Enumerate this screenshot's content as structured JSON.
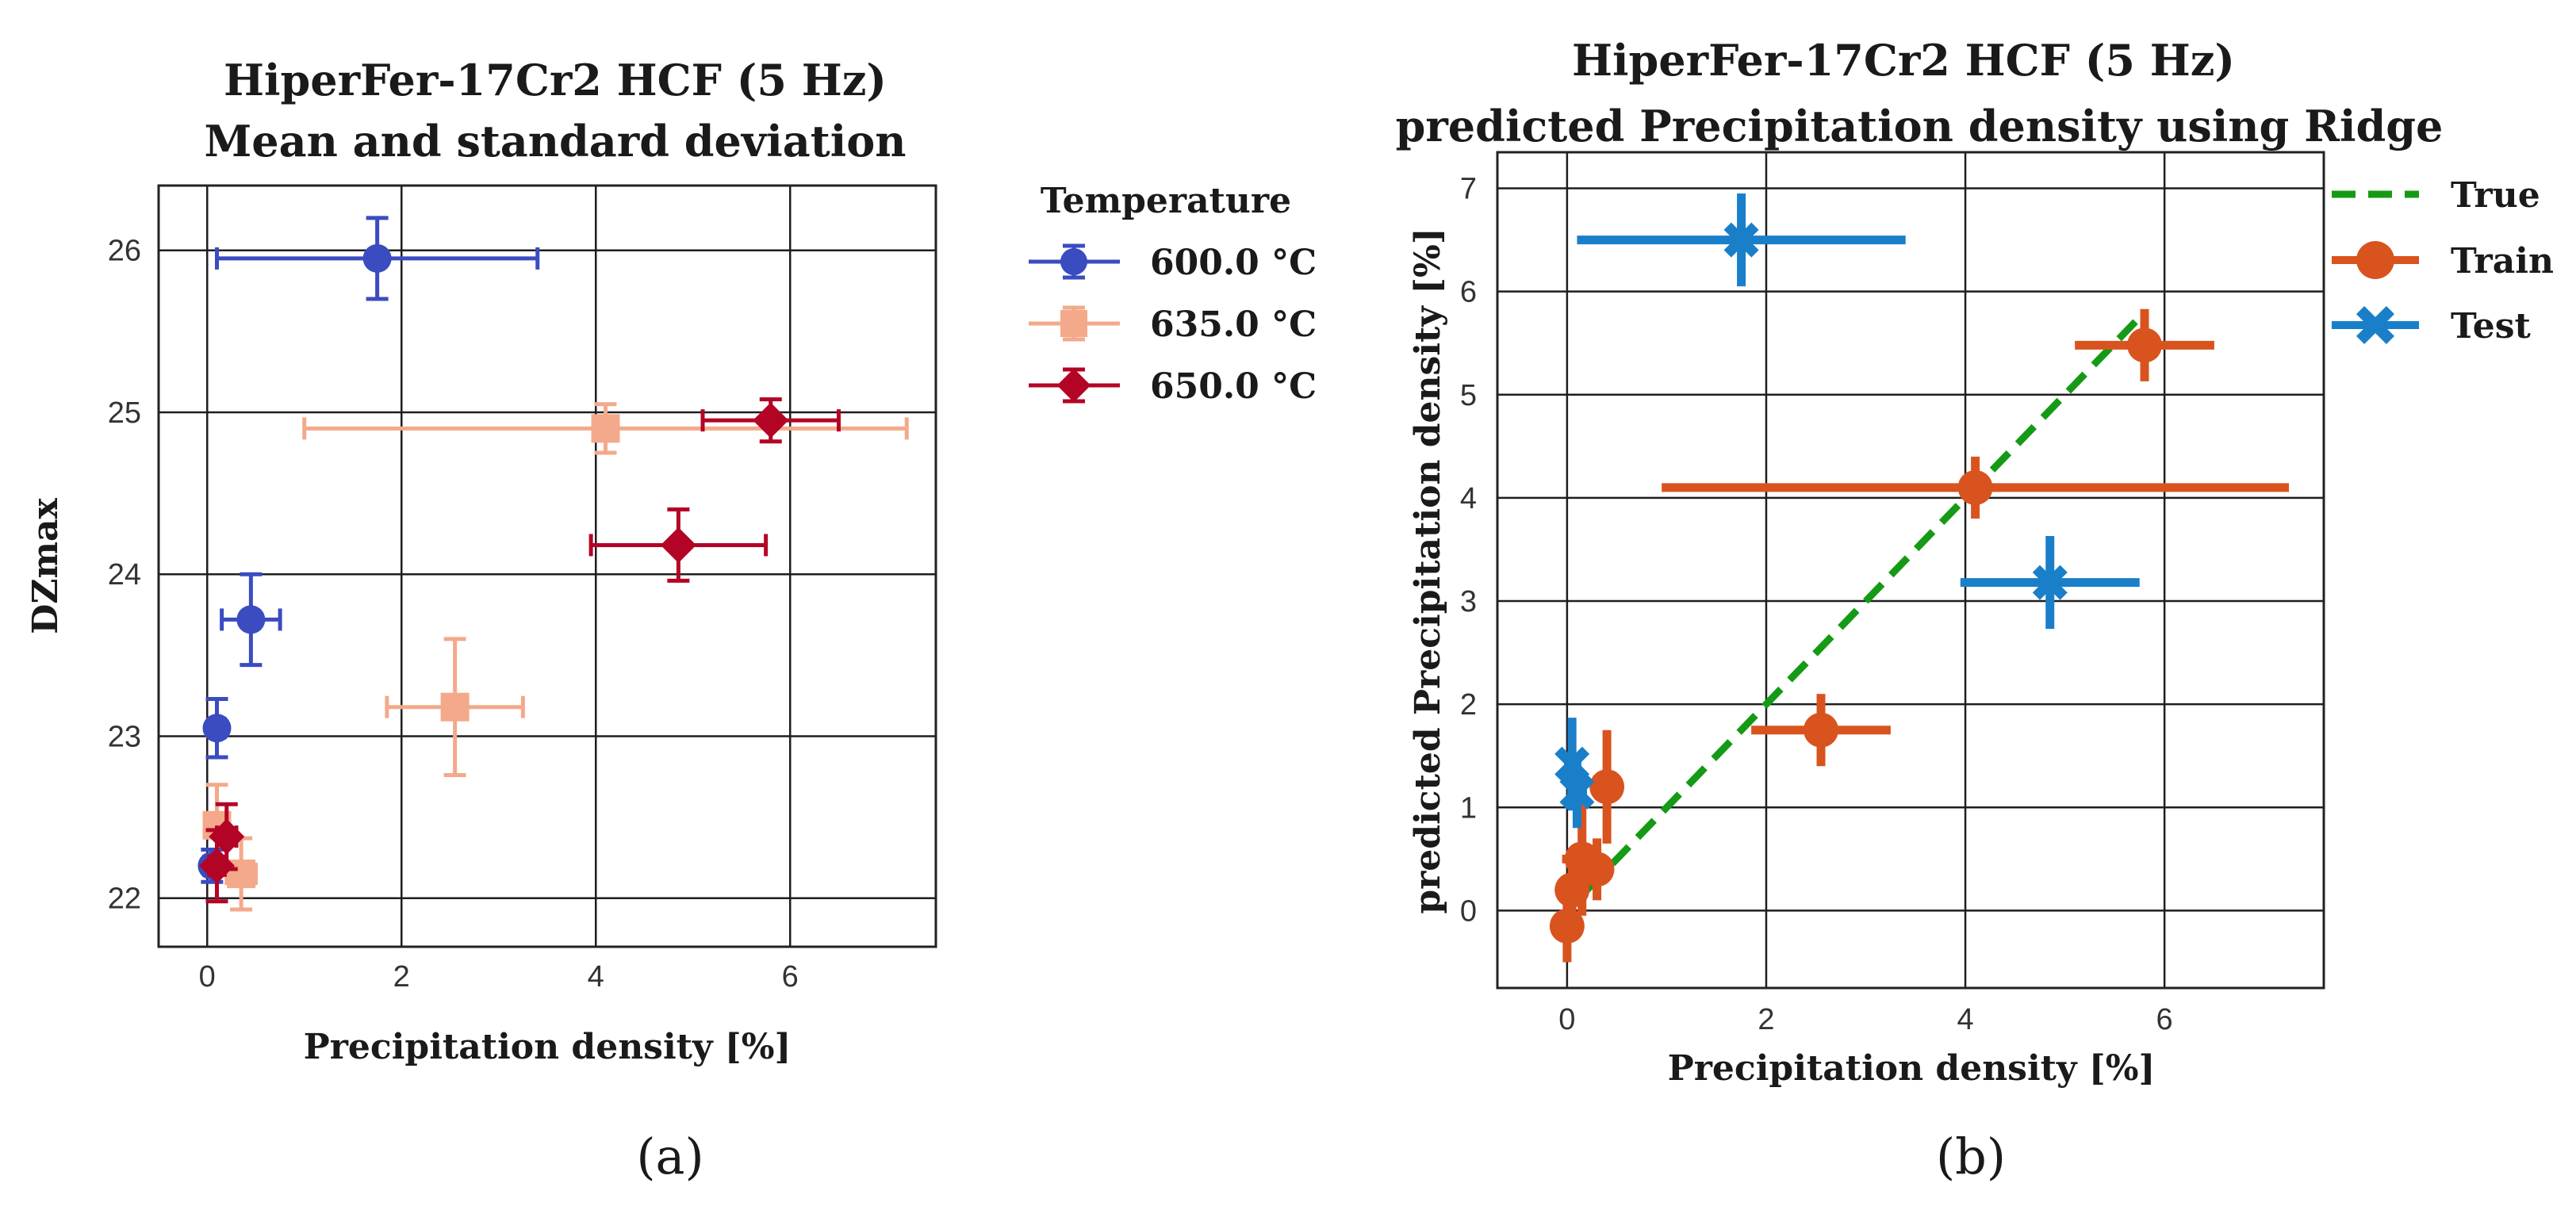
{
  "chart_data": [
    {
      "panel": "(a)",
      "type": "scatter",
      "title": [
        "HiperFer-17Cr2 HCF (5 Hz)",
        "Mean and standard deviation"
      ],
      "xlabel": "Precipitation density [%]",
      "ylabel": "DZmax",
      "xlim": [
        -0.5,
        7.5
      ],
      "ylim": [
        21.7,
        26.4
      ],
      "xticks": [
        0,
        2,
        4,
        6
      ],
      "yticks": [
        22,
        23,
        24,
        25,
        26
      ],
      "grid": true,
      "legend": {
        "title": "Temperature",
        "placement": "outside-right"
      },
      "series": [
        {
          "name": "600.0 °C",
          "color": "#3a4cc0",
          "marker": "circle",
          "points": [
            {
              "x": 1.75,
              "y": 25.95,
              "xerr": 1.65,
              "yerr": 0.25
            },
            {
              "x": 0.45,
              "y": 23.72,
              "xerr": 0.3,
              "yerr": 0.28
            },
            {
              "x": 0.1,
              "y": 23.05,
              "xerr": 0.08,
              "yerr": 0.18
            },
            {
              "x": 0.05,
              "y": 22.2,
              "xerr": 0.08,
              "yerr": 0.1
            }
          ]
        },
        {
          "name": "635.0 °C",
          "color": "#f4a98a",
          "marker": "square",
          "points": [
            {
              "x": 4.1,
              "y": 24.9,
              "xerr": 3.1,
              "yerr": 0.15
            },
            {
              "x": 2.55,
              "y": 23.18,
              "xerr": 0.7,
              "yerr": 0.42
            },
            {
              "x": 0.1,
              "y": 22.45,
              "xerr": 0.1,
              "yerr": 0.25
            },
            {
              "x": 0.35,
              "y": 22.15,
              "xerr": 0.15,
              "yerr": 0.22
            }
          ]
        },
        {
          "name": "650.0 °C",
          "color": "#b40426",
          "marker": "diamond",
          "points": [
            {
              "x": 5.8,
              "y": 24.95,
              "xerr": 0.7,
              "yerr": 0.13
            },
            {
              "x": 4.85,
              "y": 24.18,
              "xerr": 0.9,
              "yerr": 0.22
            },
            {
              "x": 0.2,
              "y": 22.38,
              "xerr": 0.1,
              "yerr": 0.2
            },
            {
              "x": 0.1,
              "y": 22.2,
              "xerr": 0.08,
              "yerr": 0.22
            }
          ]
        }
      ]
    },
    {
      "panel": "(b)",
      "type": "scatter",
      "title": [
        "HiperFer-17Cr2 HCF (5 Hz)",
        "predicted Precipitation density using Ridge"
      ],
      "xlabel": "Precipitation density  [%]",
      "ylabel": "predicted Precipitation density  [%]",
      "xlim": [
        -0.7,
        7.6
      ],
      "ylim": [
        -0.75,
        7.35
      ],
      "xticks": [
        0,
        2,
        4,
        6
      ],
      "yticks": [
        0,
        1,
        2,
        3,
        4,
        5,
        6,
        7
      ],
      "grid": true,
      "legend": {
        "placement": "outside-right"
      },
      "true_line": {
        "name": "True",
        "color": "#159a15",
        "x": [
          0.2,
          5.8
        ],
        "y": [
          0.2,
          5.8
        ]
      },
      "series": [
        {
          "name": "Train",
          "color": "#d9531e",
          "marker": "circle",
          "points": [
            {
              "x": 5.8,
              "y": 5.48,
              "xerr": 0.7,
              "yerr": 0.35
            },
            {
              "x": 4.1,
              "y": 4.1,
              "xerr": 3.15,
              "yerr": 0.3
            },
            {
              "x": 2.55,
              "y": 1.75,
              "xerr": 0.7,
              "yerr": 0.35
            },
            {
              "x": 0.4,
              "y": 1.2,
              "xerr": 0.1,
              "yerr": 0.55
            },
            {
              "x": 0.15,
              "y": 0.5,
              "xerr": 0.2,
              "yerr": 0.55
            },
            {
              "x": 0.3,
              "y": 0.4,
              "xerr": 0.1,
              "yerr": 0.3
            },
            {
              "x": 0.05,
              "y": 0.2,
              "xerr": 0.05,
              "yerr": 0.3
            },
            {
              "x": 0.0,
              "y": -0.15,
              "xerr": 0.05,
              "yerr": 0.35
            }
          ]
        },
        {
          "name": "Test",
          "color": "#1a7fc9",
          "marker": "x",
          "points": [
            {
              "x": 1.75,
              "y": 6.5,
              "xerr": 1.65,
              "yerr": 0.45
            },
            {
              "x": 4.85,
              "y": 3.18,
              "xerr": 0.9,
              "yerr": 0.45
            },
            {
              "x": 0.05,
              "y": 1.42,
              "xerr": 0.08,
              "yerr": 0.45
            },
            {
              "x": 0.1,
              "y": 1.15,
              "xerr": 0.1,
              "yerr": 0.35
            }
          ]
        }
      ]
    }
  ]
}
